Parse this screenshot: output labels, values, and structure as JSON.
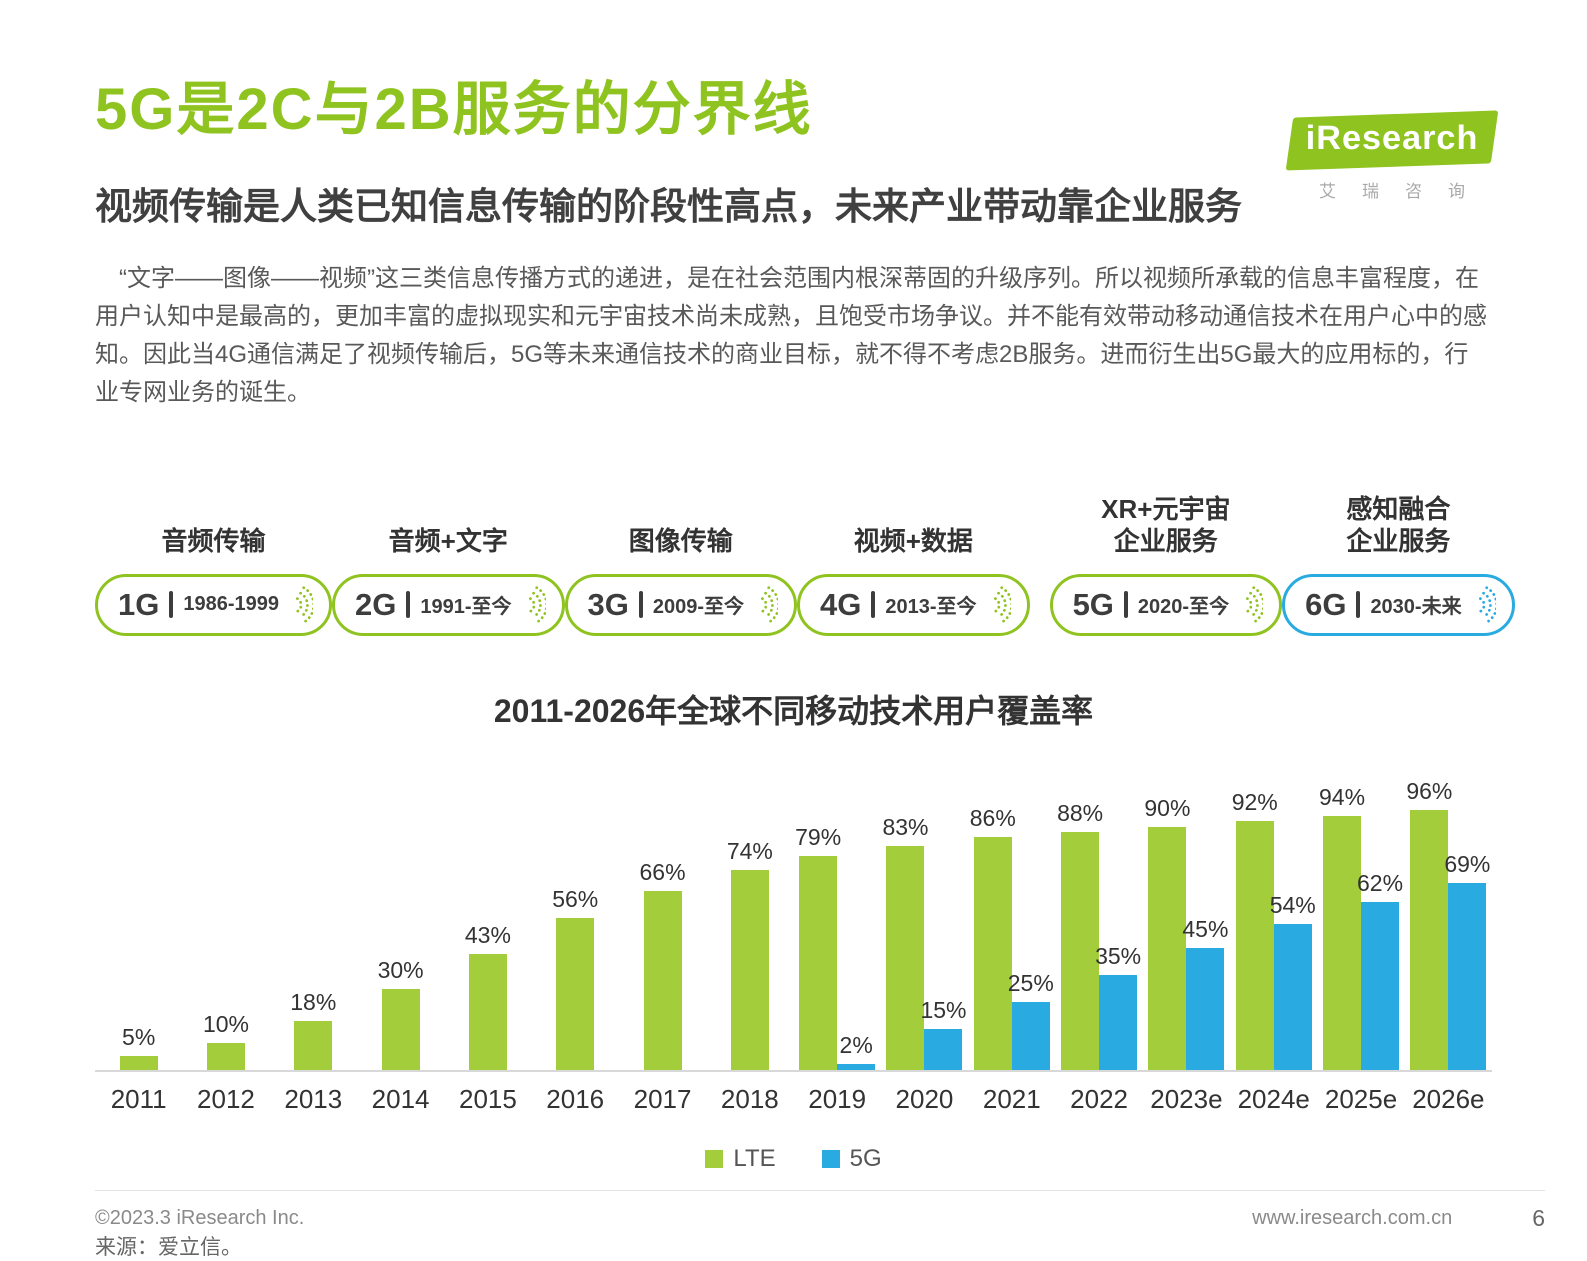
{
  "logo": {
    "brand": "iResearch",
    "sub": "艾瑞咨询"
  },
  "header": {
    "title": "5G是2C与2B服务的分界线",
    "subtitle": "视频传输是人类已知信息传输的阶段性高点，未来产业带动靠企业服务"
  },
  "paragraph": "“文字——图像——视频”这三类信息传播方式的递进，是在社会范围内根深蒂固的升级序列。所以视频所承载的信息丰富程度，在用户认知中是最高的，更加丰富的虚拟现实和元宇宙技术尚未成熟，且饱受市场争议。并不能有效带动移动通信技术在用户心中的感知。因此当4G通信满足了视频传输后，5G等未来通信技术的商业目标，就不得不考虑2B服务。进而衍生出5G最大的应用标的，行业专网业务的诞生。",
  "timeline": {
    "divider_before_index": 4,
    "items": [
      {
        "label": "音频传输",
        "gen": "1G",
        "period": "1986-1999",
        "color": "green"
      },
      {
        "label": "音频+文字",
        "gen": "2G",
        "period": "1991-至今",
        "color": "green"
      },
      {
        "label": "图像传输",
        "gen": "3G",
        "period": "2009-至今",
        "color": "green"
      },
      {
        "label": "视频+数据",
        "gen": "4G",
        "period": "2013-至今",
        "color": "green"
      },
      {
        "label": "XR+元宇宙\n企业服务",
        "gen": "5G",
        "period": "2020-至今",
        "color": "green"
      },
      {
        "label": "感知融合\n企业服务",
        "gen": "6G",
        "period": "2030-未来",
        "color": "blue"
      }
    ]
  },
  "chart_data": {
    "type": "bar",
    "title": "2011-2026年全球不同移动技术用户覆盖率",
    "categories": [
      "2011",
      "2012",
      "2013",
      "2014",
      "2015",
      "2016",
      "2017",
      "2018",
      "2019",
      "2020",
      "2021",
      "2022",
      "2023e",
      "2024e",
      "2025e",
      "2026e"
    ],
    "series": [
      {
        "name": "LTE",
        "color": "#a3cd3a",
        "values": [
          5,
          10,
          18,
          30,
          43,
          56,
          66,
          74,
          79,
          83,
          86,
          88,
          90,
          92,
          94,
          96
        ]
      },
      {
        "name": "5G",
        "color": "#29abe2",
        "values": [
          null,
          null,
          null,
          null,
          null,
          null,
          null,
          null,
          2,
          15,
          25,
          35,
          45,
          54,
          62,
          69
        ]
      }
    ],
    "ylim": [
      0,
      100
    ],
    "value_suffix": "%",
    "grid": false,
    "legend_position": "bottom"
  },
  "footer": {
    "source": "来源：爱立信。",
    "copyright": "©2023.3 iResearch Inc.",
    "website": "www.iresearch.com.cn",
    "page_number": "6"
  },
  "colors": {
    "green": "#8fc31f",
    "blue": "#29abe2",
    "bar_green": "#a3cd3a"
  }
}
